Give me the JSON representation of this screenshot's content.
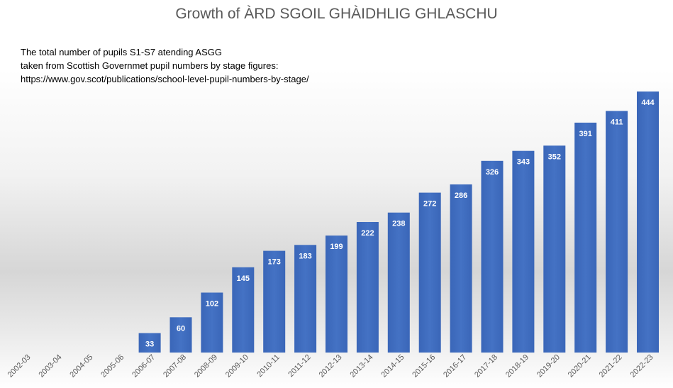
{
  "chart_data": {
    "type": "bar",
    "title": "Growth of ÀRD SGOIL GHÀIDHLIG GHLASCHU",
    "annotation_lines": [
      "The total number of pupils S1-S7 atending ASGG",
      "taken from Scottish Governmet pupil numbers by stage figures:",
      "https://www.gov.scot/publications/school-level-pupil-numbers-by-stage/"
    ],
    "categories": [
      "2002-03",
      "2003-04",
      "2004-05",
      "2005-06",
      "2006-07",
      "2007-08",
      "2008-09",
      "2009-10",
      "2010-11",
      "2011-12",
      "2012-13",
      "2013-14",
      "2014-15",
      "2015-16",
      "2016-17",
      "2017-18",
      "2018-19",
      "2019-20",
      "2020-21",
      "2021-22",
      "2022-23"
    ],
    "values": [
      null,
      null,
      null,
      null,
      33,
      60,
      102,
      145,
      173,
      183,
      199,
      222,
      238,
      272,
      286,
      326,
      343,
      352,
      391,
      411,
      444
    ],
    "xlabel": "",
    "ylabel": "",
    "ylim": [
      0,
      444
    ],
    "grid": false,
    "legend": "none",
    "bar_color": "#4472c4",
    "label_color": "#ffffff"
  }
}
